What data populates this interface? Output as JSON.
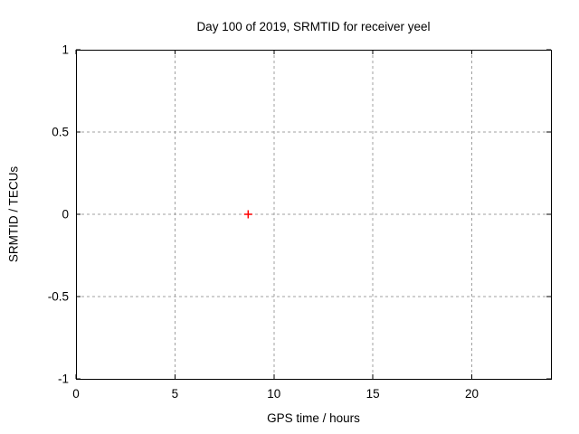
{
  "chart_data": {
    "type": "scatter",
    "title": "Day 100 of 2019, SRMTID for receiver yeel",
    "xlabel": "GPS time / hours",
    "ylabel": "SRMTID / TECUs",
    "xlim": [
      0,
      24
    ],
    "ylim": [
      -1,
      1
    ],
    "xticks": [
      0,
      5,
      10,
      15,
      20
    ],
    "yticks": [
      -1,
      -0.5,
      0,
      0.5,
      1
    ],
    "grid": true,
    "legend": "none",
    "colors": {
      "background": "#ffffff",
      "border": "#000000",
      "grid": "#a0a0a0",
      "marker": "#ff0000"
    },
    "series": [
      {
        "name": "",
        "marker": "plus",
        "color": "#ff0000",
        "points": [
          {
            "x": 8.7,
            "y": 0.0
          }
        ]
      }
    ]
  }
}
